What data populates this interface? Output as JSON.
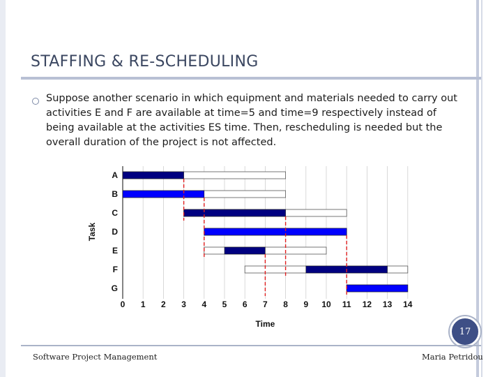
{
  "slide": {
    "title": "STAFFING & RE-SCHEDULING",
    "bullet": "Suppose another scenario in which equipment and materials needed to carry out activities E and F are available at time=5 and time=9 respectively instead of being available at the activities ES time. Then, rescheduling is needed but the overall duration of the project is not affected.",
    "page_number": "17",
    "footer_left": "Software Project Management",
    "footer_right": "Maria Petridou"
  },
  "colors": {
    "accent": "#3e4f86",
    "bar_dark": "#000080",
    "bar_blue": "#0000ff",
    "dashed_line": "#e02020"
  },
  "chart_data": {
    "type": "gantt",
    "xlabel": "Time",
    "ylabel": "Task",
    "xlim": [
      0,
      14
    ],
    "xticks": [
      0,
      1,
      2,
      3,
      4,
      5,
      6,
      7,
      8,
      9,
      10,
      11,
      12,
      13,
      14
    ],
    "tasks": [
      {
        "name": "A",
        "start": 0,
        "end": 3,
        "slack_end": 8,
        "color": "dark"
      },
      {
        "name": "B",
        "start": 0,
        "end": 4,
        "slack_end": 8,
        "color": "blue"
      },
      {
        "name": "C",
        "start": 3,
        "end": 8,
        "slack_end": 11,
        "color": "dark"
      },
      {
        "name": "D",
        "start": 4,
        "end": 11,
        "slack_end": 11,
        "color": "blue"
      },
      {
        "name": "E",
        "start": 5,
        "end": 7,
        "slack_end": 10,
        "color": "dark",
        "open_start": 4
      },
      {
        "name": "F",
        "start": 9,
        "end": 13,
        "slack_end": 14,
        "color": "dark",
        "open_start": 6
      },
      {
        "name": "G",
        "start": 11,
        "end": 14,
        "slack_end": 14,
        "color": "blue"
      }
    ],
    "dashed_lines": [
      {
        "x": 3,
        "from_task": 0,
        "to_task": 2
      },
      {
        "x": 4,
        "from_task": 1,
        "to_task": 4
      },
      {
        "x": 7,
        "from_task": 4,
        "to_task": 6
      },
      {
        "x": 8,
        "from_task": 2,
        "to_task": 5
      },
      {
        "x": 11,
        "from_task": 3,
        "to_task": 6
      }
    ]
  }
}
